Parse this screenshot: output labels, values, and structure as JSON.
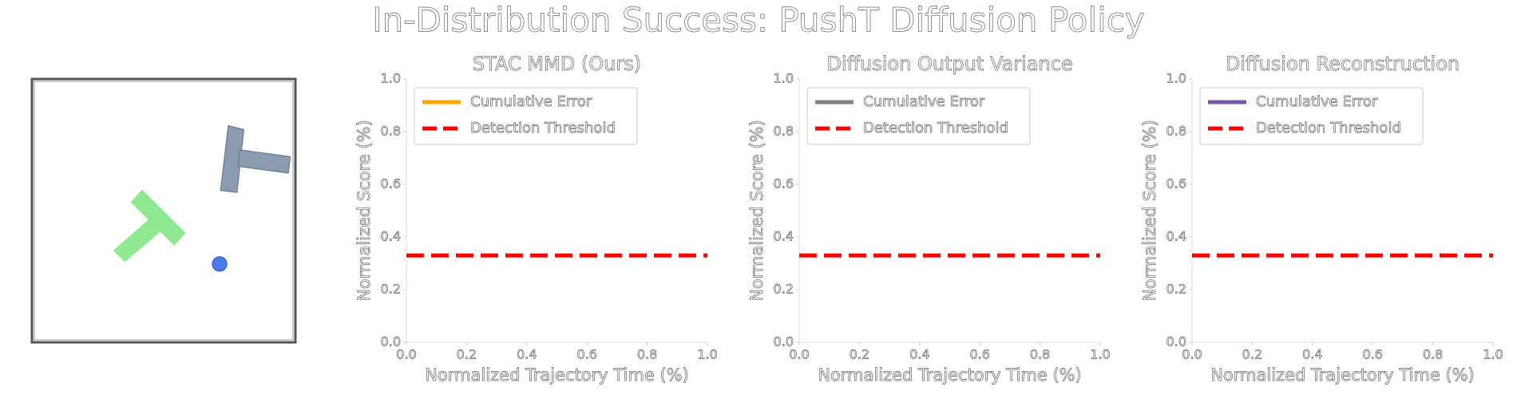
{
  "suptitle": "In-Distribution Success: PushT Diffusion Policy",
  "chart_data": [
    {
      "type": "line",
      "title": "STAC MMD (Ours)",
      "xlabel": "Normalized Trajectory Time (%)",
      "ylabel": "Normalized Score (%)",
      "x": [
        0,
        1
      ],
      "series": [
        {
          "name": "Cumulative Error",
          "color": "#ffa500",
          "values": [
            null,
            null
          ]
        },
        {
          "name": "Detection Threshold",
          "color": "#ff0000",
          "dashed": true,
          "values": [
            0.33,
            0.33
          ]
        }
      ],
      "xlim": [
        0,
        1
      ],
      "ylim": [
        0,
        1
      ],
      "xticks": [
        {
          "value": 0,
          "label": "0.0"
        },
        0.2,
        0.4,
        0.6,
        0.8,
        {
          "value": 1,
          "label": "1.0"
        }
      ],
      "yticks": [
        {
          "value": 0,
          "label": "0.0"
        },
        0.2,
        0.4,
        0.6,
        0.8,
        {
          "value": 1,
          "label": "1.0"
        }
      ]
    },
    {
      "type": "line",
      "title": "Diffusion Output Variance",
      "xlabel": "Normalized Trajectory Time (%)",
      "ylabel": "Normalized Score (%)",
      "x": [
        0,
        1
      ],
      "series": [
        {
          "name": "Cumulative Error",
          "color": "#808080",
          "values": [
            null,
            null
          ]
        },
        {
          "name": "Detection Threshold",
          "color": "#ff0000",
          "dashed": true,
          "values": [
            0.33,
            0.33
          ]
        }
      ],
      "xlim": [
        0,
        1
      ],
      "ylim": [
        0,
        1
      ],
      "xticks": [
        {
          "value": 0,
          "label": "0.0"
        },
        0.2,
        0.4,
        0.6,
        0.8,
        {
          "value": 1,
          "label": "1.0"
        }
      ],
      "yticks": [
        {
          "value": 0,
          "label": "0.0"
        },
        0.2,
        0.4,
        0.6,
        0.8,
        {
          "value": 1,
          "label": "1.0"
        }
      ]
    },
    {
      "type": "line",
      "title": "Diffusion Reconstruction",
      "xlabel": "Normalized Trajectory Time (%)",
      "ylabel": "Normalized Score (%)",
      "x": [
        0,
        1
      ],
      "series": [
        {
          "name": "Cumulative Error",
          "color": "#7558a8",
          "values": [
            null,
            null
          ]
        },
        {
          "name": "Detection Threshold",
          "color": "#ff0000",
          "dashed": true,
          "values": [
            0.33,
            0.33
          ]
        }
      ],
      "xlim": [
        0,
        1
      ],
      "ylim": [
        0,
        1
      ],
      "xticks": [
        {
          "value": 0,
          "label": "0.0"
        },
        0.2,
        0.4,
        0.6,
        0.8,
        {
          "value": 1,
          "label": "1.0"
        }
      ],
      "yticks": [
        {
          "value": 0,
          "label": "0.0"
        },
        0.2,
        0.4,
        0.6,
        0.8,
        {
          "value": 1,
          "label": "1.0"
        }
      ]
    }
  ]
}
